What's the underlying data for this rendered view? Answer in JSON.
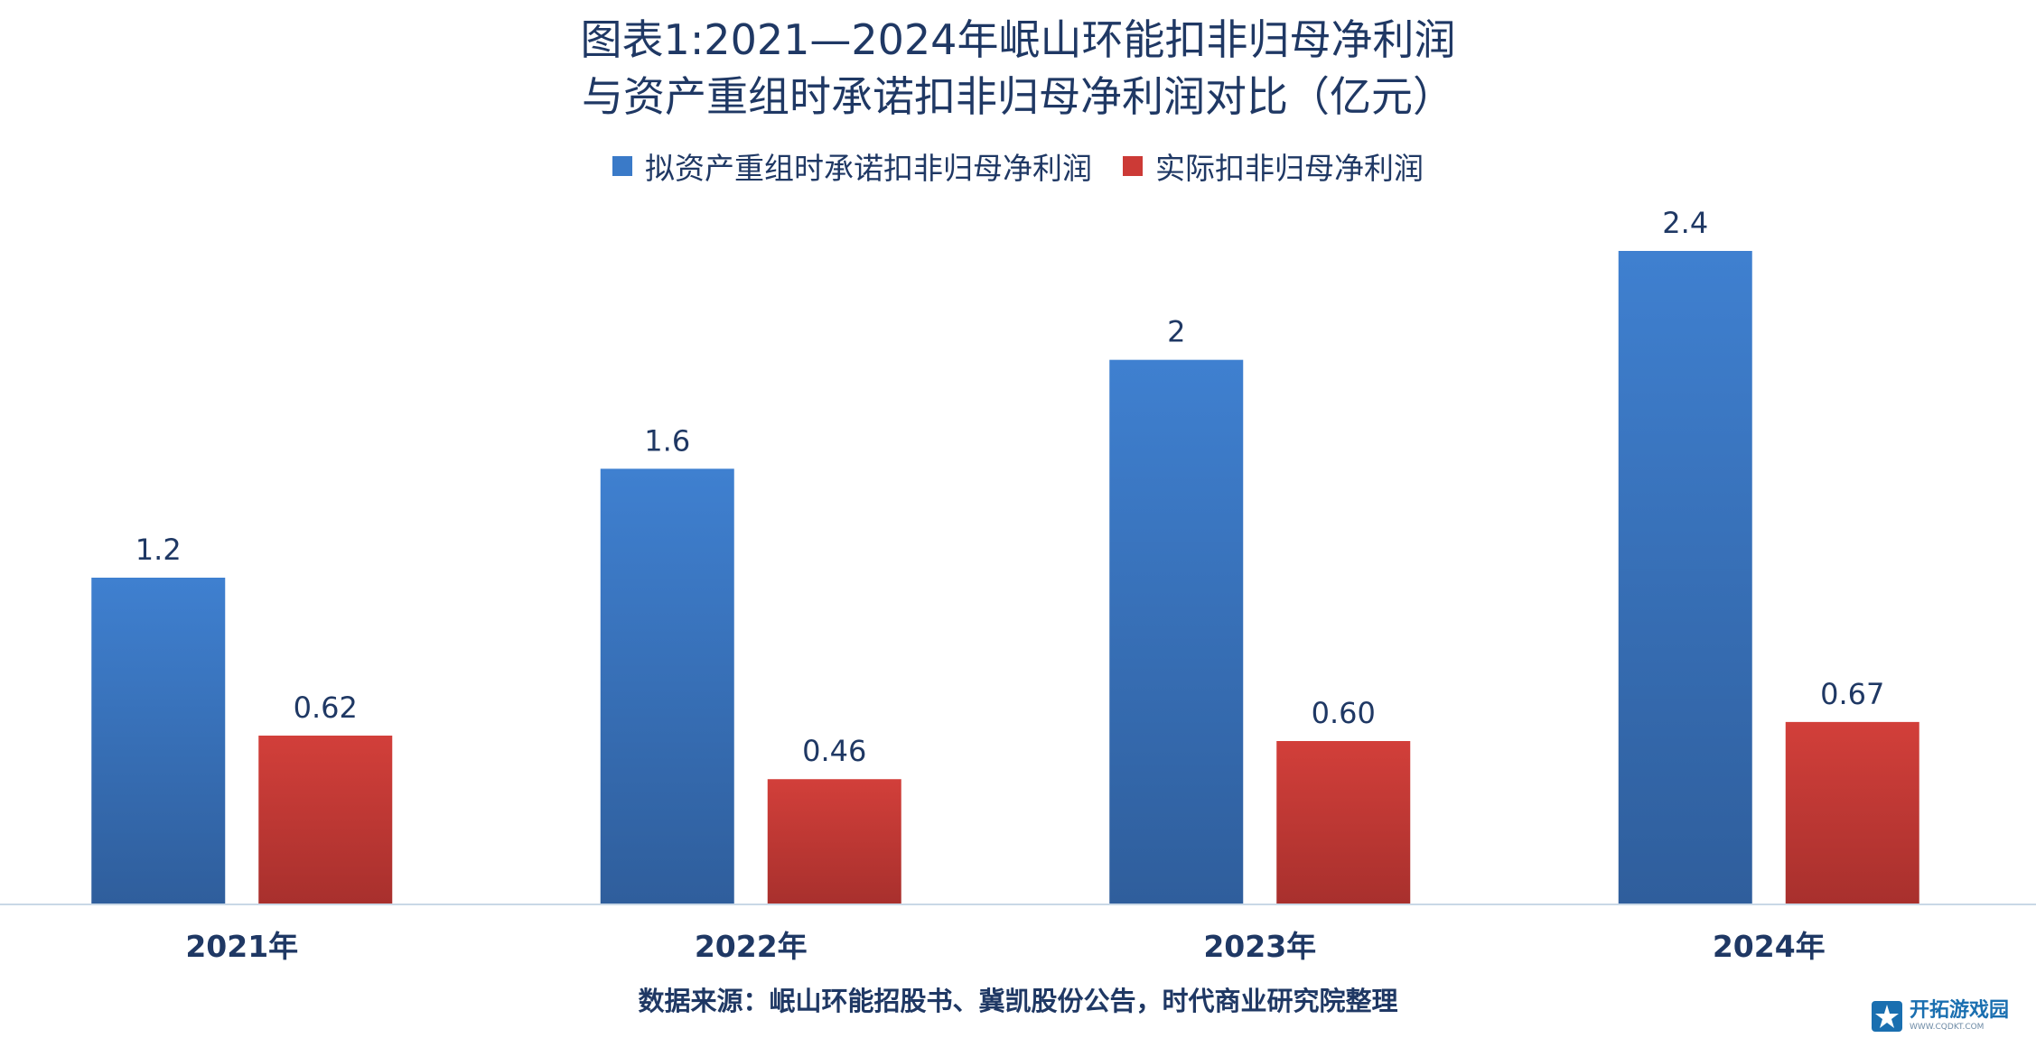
{
  "chart_data": {
    "type": "bar",
    "title_line1": "图表1:2021—2024年岷山环能扣非归母净利润",
    "title_line2": "与资产重组时承诺扣非归母净利润对比（亿元）",
    "categories": [
      "2021年",
      "2022年",
      "2023年",
      "2024年"
    ],
    "series": [
      {
        "name": "拟资产重组时承诺扣非归母净利润",
        "values": [
          1.2,
          1.6,
          2,
          2.4
        ],
        "labels": [
          "1.2",
          "1.6",
          "2",
          "2.4"
        ],
        "color": "#3a7ac8"
      },
      {
        "name": "实际扣非归母净利润",
        "values": [
          0.62,
          0.46,
          0.6,
          0.67
        ],
        "labels": [
          "0.62",
          "0.46",
          "0.60",
          "0.67"
        ],
        "color": "#cc3a36"
      }
    ],
    "ylim": [
      0,
      2.4
    ],
    "grid": false,
    "legend_position": "top"
  },
  "source_text": "数据来源：岷山环能招股书、冀凯股份公告，时代商业研究院整理",
  "logo": {
    "name": "开拓游戏园",
    "url": "WWW.CQDKT.COM"
  }
}
